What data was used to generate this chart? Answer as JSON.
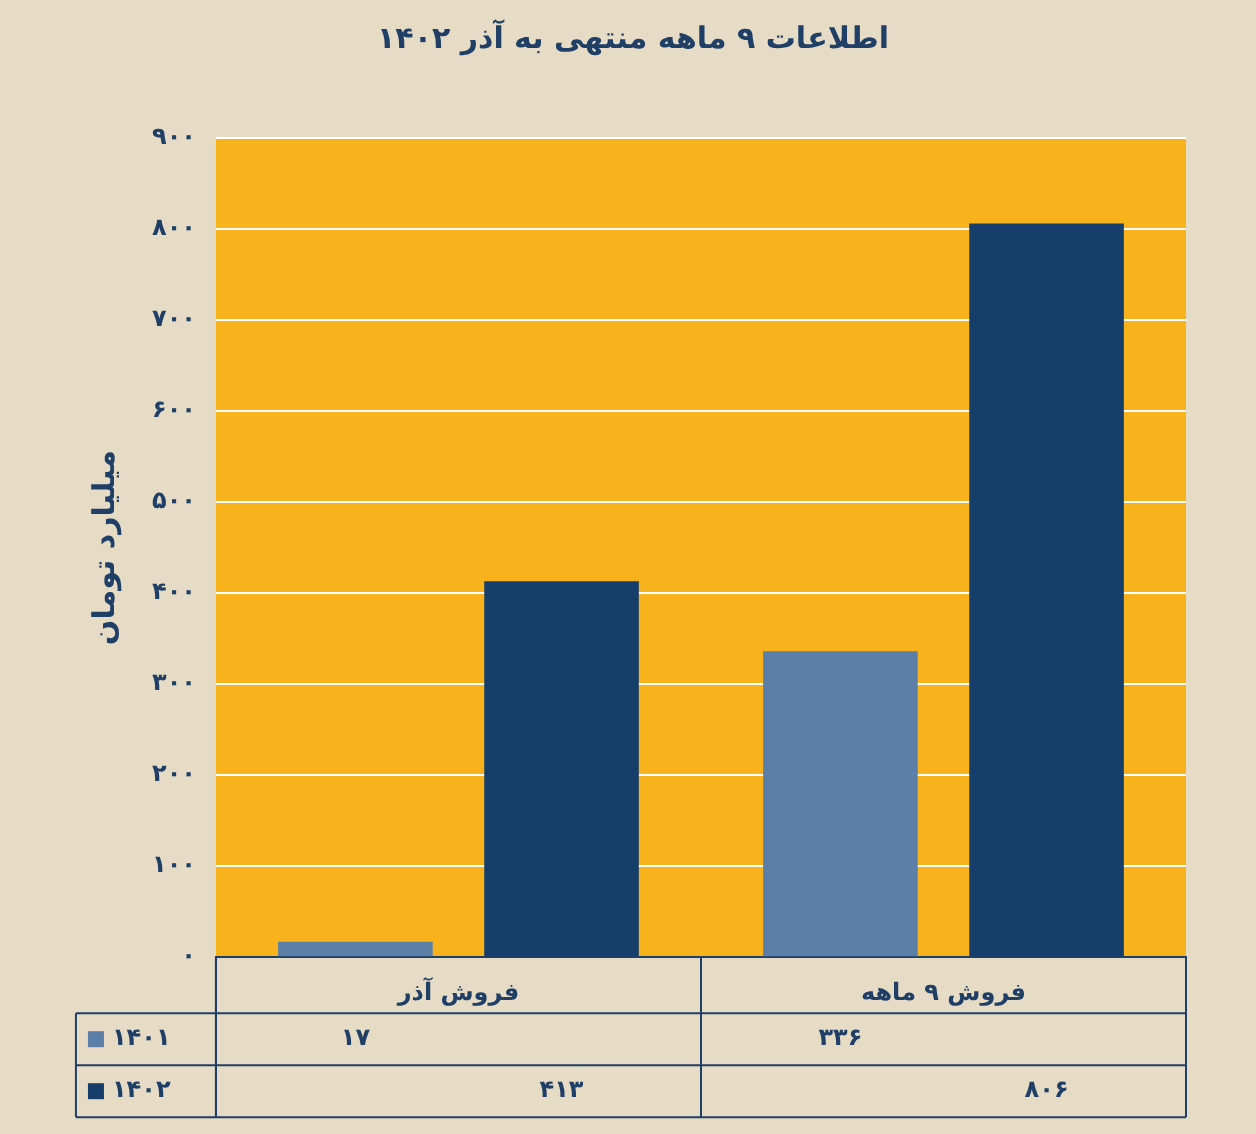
{
  "chart_data": {
    "type": "bar",
    "title": "اطلاعات ۹ ماهه منتهی به آذر ۱۴۰۲",
    "ylabel": "میلیارد تومان",
    "categories": [
      "فروش آذر",
      "فروش ۹ ماهه"
    ],
    "series": [
      {
        "name": "۱۴۰۱",
        "color": "#5b7fa6",
        "values": [
          17,
          336
        ],
        "value_labels": [
          "۱۷",
          "۳۳۶"
        ]
      },
      {
        "name": "۱۴۰۲",
        "color": "#153e6b",
        "values": [
          413,
          806
        ],
        "value_labels": [
          "۴۱۳",
          "۸۰۶"
        ]
      }
    ],
    "ylim": [
      0,
      900
    ],
    "yticks": [
      {
        "value": 0,
        "label": "۰"
      },
      {
        "value": 100,
        "label": "۱۰۰"
      },
      {
        "value": 200,
        "label": "۲۰۰"
      },
      {
        "value": 300,
        "label": "۳۰۰"
      },
      {
        "value": 400,
        "label": "۴۰۰"
      },
      {
        "value": 500,
        "label": "۵۰۰"
      },
      {
        "value": 600,
        "label": "۶۰۰"
      },
      {
        "value": 700,
        "label": "۷۰۰"
      },
      {
        "value": 800,
        "label": "۸۰۰"
      },
      {
        "value": 900,
        "label": "۹۰۰"
      }
    ],
    "grid": "y",
    "legend": "bottom"
  }
}
